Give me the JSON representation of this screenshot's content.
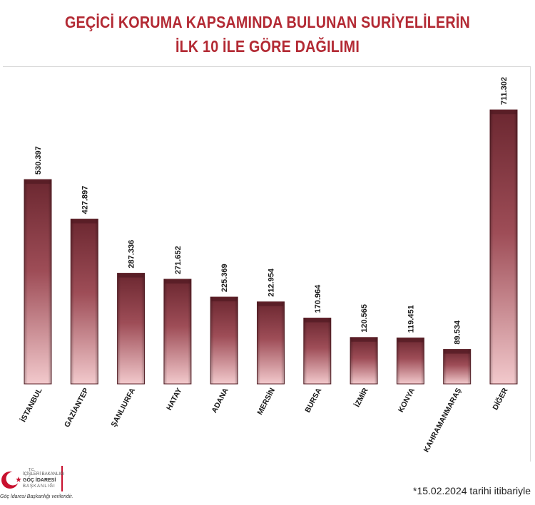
{
  "chart_data": {
    "type": "bar",
    "title_lines": [
      "GEÇİCİ KORUMA KAPSAMINDA BULUNAN SURİYELİLERİN",
      "İLK 10 İLE GÖRE DAĞILIMI"
    ],
    "categories": [
      "İSTANBUL",
      "GAZİANTEP",
      "ŞANLIURFA",
      "HATAY",
      "ADANA",
      "MERSİN",
      "BURSA",
      "İZMİR",
      "KONYA",
      "KAHRAMANMARAŞ",
      "DİĞER"
    ],
    "values": [
      530397,
      427897,
      287336,
      271652,
      225369,
      212954,
      170964,
      120565,
      119451,
      89534,
      711302
    ],
    "value_labels": [
      "530.397",
      "427.897",
      "287.336",
      "271.652",
      "225.369",
      "212.954",
      "170.964",
      "120.565",
      "119.451",
      "89.534",
      "711.302"
    ],
    "ylim": [
      0,
      830000
    ],
    "grid": false,
    "legend": "none",
    "colors": {
      "bar_top": "#6b2730",
      "bar_mid": "#9e4d57",
      "bar_bottom": "#f2c9cc",
      "title": "#b32a34"
    }
  },
  "logo": {
    "line1": "T.C.",
    "line2": "İÇİŞLERİ BAKANLIĞI",
    "line3": "GÖÇ İDARESİ",
    "line4": "BAŞKANLIĞI",
    "caption": "Göç İdaresi Başkanlığı verileridir."
  },
  "footnote": "*15.02.2024 tarihi itibariyle"
}
